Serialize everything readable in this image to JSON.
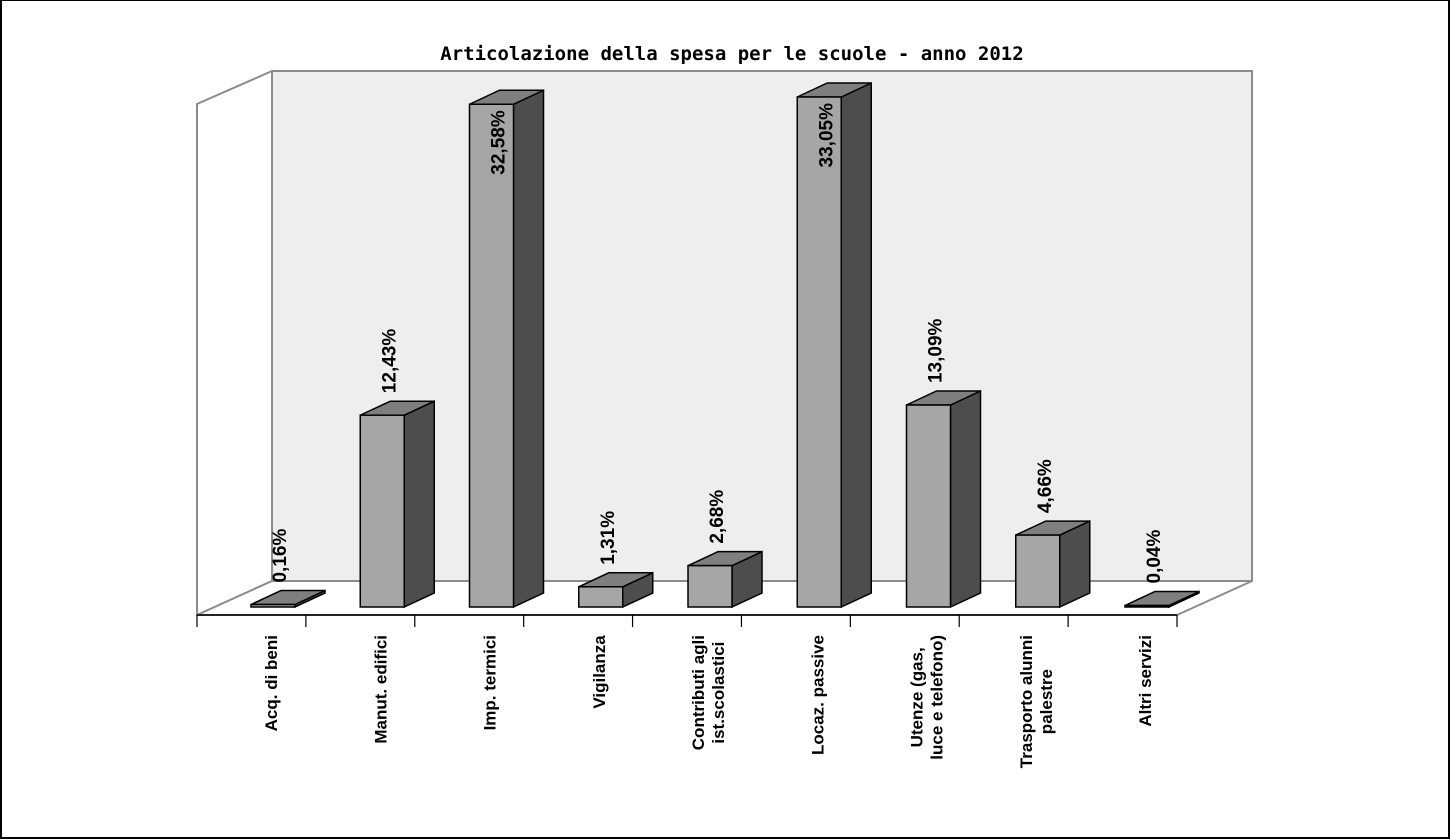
{
  "chart_data": {
    "type": "bar",
    "title": "Articolazione della spesa per le scuole - anno 2012",
    "categories": [
      [
        "Acq. di beni"
      ],
      [
        "Manut. edifici"
      ],
      [
        "Imp. termici"
      ],
      [
        "Vigilanza"
      ],
      [
        "Contributi agli",
        "ist.scolastici"
      ],
      [
        "Locaz. passive"
      ],
      [
        "Utenze (gas,",
        "luce e telefono)"
      ],
      [
        "Trasporto alunni",
        "palestre"
      ],
      [
        "Altri servizi"
      ]
    ],
    "values": [
      0.16,
      12.43,
      32.58,
      1.31,
      2.68,
      33.05,
      13.09,
      4.66,
      0.04
    ],
    "data_labels": [
      "0,16%",
      "12,43%",
      "32,58%",
      "1,31%",
      "2,68%",
      "33,05%",
      "13,09%",
      "4,66%",
      "0,04%"
    ],
    "xlabel": "",
    "ylabel": "",
    "ylim": [
      0,
      33.05
    ],
    "grid": false,
    "legend": "none",
    "colors": {
      "bar_front": "#a6a6a6",
      "bar_side": "#4d4d4d",
      "bar_top": "#7f7f7f",
      "back_wall": "#eeeeee",
      "floor": "#ffffff",
      "wall_edge": "#8c8c8c"
    }
  }
}
